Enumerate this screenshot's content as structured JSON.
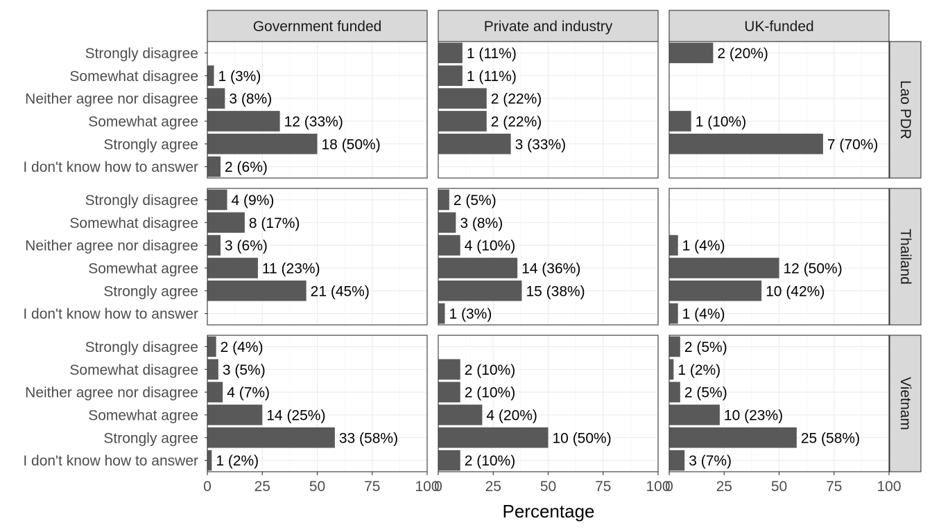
{
  "chart_data": {
    "type": "bar",
    "orientation": "horizontal",
    "xlabel": "Percentage",
    "xlim": [
      0,
      100
    ],
    "x_ticks": [
      0,
      25,
      50,
      75,
      100
    ],
    "grid": true,
    "bar_color": "#595959",
    "categories": [
      "Strongly disagree",
      "Somewhat disagree",
      "Neither agree nor disagree",
      "Somewhat agree",
      "Strongly agree",
      "I don't know how to answer"
    ],
    "columns": [
      "Government funded",
      "Private and industry",
      "UK-funded"
    ],
    "rows": [
      "Lao PDR",
      "Thailand",
      "Vietnam"
    ],
    "panels": [
      {
        "row": "Lao PDR",
        "column": "Government funded",
        "values": [
          null,
          3,
          8,
          33,
          50,
          6
        ],
        "labels": [
          "",
          "1 (3%)",
          "3 (8%)",
          "12 (33%)",
          "18 (50%)",
          "2 (6%)"
        ]
      },
      {
        "row": "Lao PDR",
        "column": "Private and industry",
        "values": [
          11,
          11,
          22,
          22,
          33,
          null
        ],
        "labels": [
          "1 (11%)",
          "1 (11%)",
          "2 (22%)",
          "2 (22%)",
          "3 (33%)",
          ""
        ]
      },
      {
        "row": "Lao PDR",
        "column": "UK-funded",
        "values": [
          20,
          null,
          null,
          10,
          70,
          null
        ],
        "labels": [
          "2 (20%)",
          "",
          "",
          "1 (10%)",
          "7 (70%)",
          ""
        ]
      },
      {
        "row": "Thailand",
        "column": "Government funded",
        "values": [
          9,
          17,
          6,
          23,
          45,
          null
        ],
        "labels": [
          "4 (9%)",
          "8 (17%)",
          "3 (6%)",
          "11 (23%)",
          "21 (45%)",
          ""
        ]
      },
      {
        "row": "Thailand",
        "column": "Private and industry",
        "values": [
          5,
          8,
          10,
          36,
          38,
          3
        ],
        "labels": [
          "2 (5%)",
          "3 (8%)",
          "4 (10%)",
          "14 (36%)",
          "15 (38%)",
          "1 (3%)"
        ]
      },
      {
        "row": "Thailand",
        "column": "UK-funded",
        "values": [
          null,
          null,
          4,
          50,
          42,
          4
        ],
        "labels": [
          "",
          "",
          "1 (4%)",
          "12 (50%)",
          "10 (42%)",
          "1 (4%)"
        ]
      },
      {
        "row": "Vietnam",
        "column": "Government funded",
        "values": [
          4,
          5,
          7,
          25,
          58,
          2
        ],
        "labels": [
          "2 (4%)",
          "3 (5%)",
          "4 (7%)",
          "14 (25%)",
          "33 (58%)",
          "1 (2%)"
        ]
      },
      {
        "row": "Vietnam",
        "column": "Private and industry",
        "values": [
          null,
          10,
          10,
          20,
          50,
          10
        ],
        "labels": [
          "",
          "2 (10%)",
          "2 (10%)",
          "4 (20%)",
          "10 (50%)",
          "2 (10%)"
        ]
      },
      {
        "row": "Vietnam",
        "column": "UK-funded",
        "values": [
          5,
          2,
          5,
          23,
          58,
          7
        ],
        "labels": [
          "2 (5%)",
          "1 (2%)",
          "2 (5%)",
          "10 (23%)",
          "25 (58%)",
          "3 (7%)"
        ]
      }
    ]
  }
}
